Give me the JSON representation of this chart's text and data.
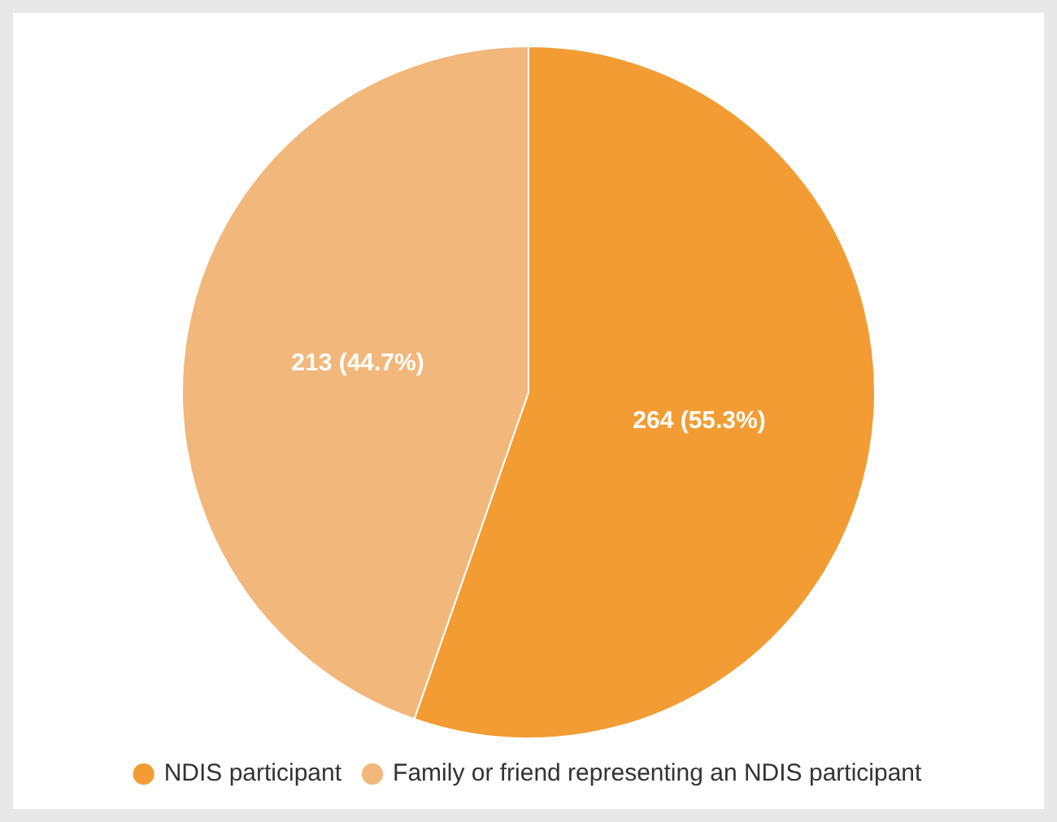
{
  "chart_data": {
    "type": "pie",
    "categories": [
      "NDIS participant",
      "Family or friend representing an NDIS participant"
    ],
    "values": [
      264,
      213
    ],
    "value_labels": [
      "264 (55.3%)",
      "213 (44.7%)"
    ],
    "colors": [
      "#f39c33",
      "#f2b77b"
    ],
    "legend": "bottom"
  }
}
